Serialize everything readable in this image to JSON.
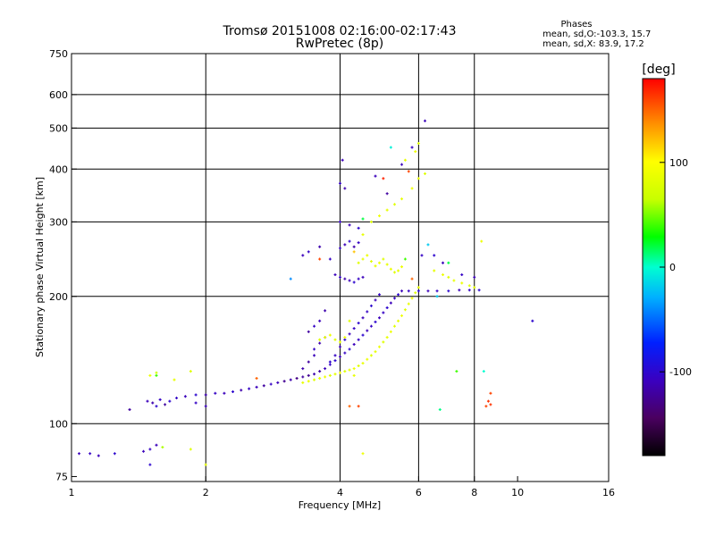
{
  "chart_data": {
    "type": "scatter",
    "title": "Tromsø 20151008 02:16:00-02:17:43",
    "subtitle": "RwPretec (8p)",
    "xlabel": "Frequency [MHz]",
    "ylabel": "Stationary phase Virtual Height [km]",
    "x_scale": "log2",
    "y_scale": "log",
    "xlim": [
      1,
      16
    ],
    "ylim": [
      73,
      750
    ],
    "x_ticks": [
      1,
      2,
      4,
      6,
      8,
      10,
      16
    ],
    "x_tick_labels": [
      "1",
      "2",
      "4",
      "6",
      "8",
      "10",
      "16"
    ],
    "x_gridlines": [
      2,
      4,
      6,
      8
    ],
    "y_ticks": [
      75,
      100,
      200,
      300,
      400,
      500,
      600,
      750
    ],
    "y_tick_labels": [
      "75",
      "100",
      "200",
      "300",
      "400",
      "500",
      "600",
      "750"
    ],
    "y_gridlines": [
      100,
      200,
      300,
      400,
      500,
      600
    ],
    "grid": true,
    "legend": {
      "title": "Phases",
      "o_mode": "mean, sd,O:-103.3, 15.7",
      "x_mode": "mean, sd,X:  83.9, 17.2"
    },
    "colorbar": {
      "unit": "[deg]",
      "range": [
        -180,
        180
      ],
      "tick_values": [
        100,
        0,
        -100
      ],
      "tick_labels": [
        "100",
        "0",
        "-100"
      ],
      "colormap": "rainbow"
    },
    "series": [
      {
        "trace": "O-mode (blue/purple, phase about -100 deg)",
        "points": [
          [
            1.48,
            113,
            -110
          ],
          [
            1.52,
            112,
            -115
          ],
          [
            1.55,
            110,
            -100
          ],
          [
            1.58,
            114,
            -105
          ],
          [
            1.62,
            111,
            -120
          ],
          [
            1.66,
            113,
            -100
          ],
          [
            1.72,
            115,
            -105
          ],
          [
            1.8,
            116,
            -110
          ],
          [
            1.9,
            117,
            -100
          ],
          [
            2.0,
            117,
            -115
          ],
          [
            2.1,
            118,
            -105
          ],
          [
            2.2,
            118,
            -110
          ],
          [
            2.3,
            119,
            -100
          ],
          [
            2.4,
            120,
            -115
          ],
          [
            2.5,
            121,
            -105
          ],
          [
            2.6,
            122,
            -110
          ],
          [
            2.7,
            123,
            -120
          ],
          [
            2.8,
            124,
            -105
          ],
          [
            2.9,
            125,
            -110
          ],
          [
            3.0,
            126,
            -125
          ],
          [
            3.1,
            127,
            -115
          ],
          [
            3.2,
            128,
            -130
          ],
          [
            3.3,
            129,
            -120
          ],
          [
            3.4,
            130,
            -125
          ],
          [
            3.5,
            131,
            -115
          ],
          [
            3.6,
            133,
            -120
          ],
          [
            3.7,
            135,
            -110
          ],
          [
            3.8,
            138,
            -105
          ],
          [
            3.9,
            141,
            -100
          ],
          [
            4.0,
            144,
            -110
          ],
          [
            4.1,
            147,
            -105
          ],
          [
            4.2,
            150,
            -100
          ],
          [
            4.3,
            154,
            -110
          ],
          [
            4.4,
            158,
            -105
          ],
          [
            4.5,
            162,
            -100
          ],
          [
            4.6,
            166,
            -110
          ],
          [
            4.7,
            170,
            -105
          ],
          [
            4.8,
            174,
            -100
          ],
          [
            4.9,
            178,
            -110
          ],
          [
            5.0,
            183,
            -105
          ],
          [
            5.1,
            188,
            -100
          ],
          [
            5.2,
            193,
            -110
          ],
          [
            5.3,
            198,
            -105
          ],
          [
            5.4,
            202,
            -100
          ],
          [
            5.5,
            206,
            -110
          ],
          [
            5.7,
            206,
            -105
          ],
          [
            6.0,
            206,
            -100
          ],
          [
            6.3,
            206,
            -110
          ],
          [
            6.6,
            206,
            -105
          ],
          [
            7.0,
            206,
            -100
          ],
          [
            7.4,
            207,
            -110
          ],
          [
            7.8,
            207,
            -105
          ],
          [
            8.2,
            207,
            -100
          ],
          [
            3.3,
            135,
            -115
          ],
          [
            3.4,
            140,
            -120
          ],
          [
            3.5,
            145,
            -110
          ],
          [
            3.5,
            150,
            -105
          ],
          [
            3.6,
            155,
            -115
          ],
          [
            3.7,
            160,
            -110
          ],
          [
            3.4,
            165,
            -120
          ],
          [
            3.5,
            170,
            -105
          ],
          [
            3.6,
            175,
            -110
          ],
          [
            3.7,
            185,
            -115
          ],
          [
            3.8,
            140,
            -100
          ],
          [
            3.9,
            145,
            -105
          ],
          [
            4.0,
            152,
            -110
          ],
          [
            4.1,
            158,
            -100
          ],
          [
            4.2,
            163,
            -110
          ],
          [
            4.3,
            168,
            -105
          ],
          [
            4.4,
            173,
            -100
          ],
          [
            4.5,
            178,
            -110
          ],
          [
            4.6,
            184,
            -105
          ],
          [
            4.7,
            190,
            -100
          ],
          [
            4.8,
            196,
            -110
          ],
          [
            4.9,
            202,
            -105
          ],
          [
            3.9,
            225,
            -110
          ],
          [
            4.0,
            222,
            -105
          ],
          [
            4.1,
            220,
            -115
          ],
          [
            4.2,
            218,
            -110
          ],
          [
            4.3,
            216,
            -100
          ],
          [
            4.4,
            220,
            -105
          ],
          [
            4.5,
            222,
            -110
          ],
          [
            4.0,
            260,
            -105
          ],
          [
            4.1,
            265,
            -110
          ],
          [
            4.2,
            270,
            -100
          ],
          [
            4.3,
            262,
            -115
          ],
          [
            4.4,
            268,
            -105
          ],
          [
            3.3,
            250,
            -110
          ],
          [
            3.4,
            255,
            -105
          ],
          [
            3.6,
            262,
            -115
          ],
          [
            3.8,
            245,
            -105
          ],
          [
            4.0,
            300,
            -105
          ],
          [
            4.2,
            295,
            -110
          ],
          [
            4.4,
            290,
            -100
          ],
          [
            4.0,
            370,
            -105
          ],
          [
            4.05,
            420,
            -110
          ],
          [
            4.1,
            360,
            -115
          ],
          [
            5.5,
            410,
            -110
          ],
          [
            5.8,
            450,
            -105
          ],
          [
            6.2,
            520,
            -110
          ],
          [
            6.1,
            250,
            -105
          ],
          [
            6.5,
            250,
            -100
          ],
          [
            6.8,
            240,
            -110
          ],
          [
            7.5,
            225,
            -105
          ],
          [
            8.0,
            222,
            -110
          ],
          [
            10.8,
            175,
            -100
          ],
          [
            5.1,
            350,
            -120
          ],
          [
            4.8,
            385,
            -110
          ],
          [
            1.04,
            85,
            -110
          ],
          [
            1.1,
            85,
            -105
          ],
          [
            1.15,
            84,
            -110
          ],
          [
            1.25,
            85,
            -100
          ],
          [
            1.45,
            86,
            -110
          ],
          [
            1.5,
            87,
            -105
          ],
          [
            1.55,
            89,
            -110
          ],
          [
            1.5,
            80,
            -100
          ],
          [
            1.9,
            112,
            -105
          ],
          [
            2.0,
            110,
            -110
          ],
          [
            1.35,
            108,
            -120
          ]
        ]
      },
      {
        "trace": "X-mode (yellow, phase about +84 deg)",
        "points": [
          [
            3.3,
            125,
            85
          ],
          [
            3.4,
            126,
            90
          ],
          [
            3.5,
            127,
            80
          ],
          [
            3.6,
            128,
            85
          ],
          [
            3.7,
            129,
            90
          ],
          [
            3.8,
            130,
            80
          ],
          [
            3.9,
            131,
            85
          ],
          [
            4.0,
            132,
            90
          ],
          [
            4.1,
            133,
            80
          ],
          [
            4.2,
            134,
            85
          ],
          [
            4.3,
            135,
            90
          ],
          [
            4.4,
            137,
            80
          ],
          [
            4.5,
            139,
            85
          ],
          [
            4.6,
            142,
            90
          ],
          [
            4.7,
            145,
            80
          ],
          [
            4.8,
            148,
            85
          ],
          [
            4.9,
            152,
            90
          ],
          [
            5.0,
            156,
            80
          ],
          [
            5.1,
            160,
            85
          ],
          [
            5.2,
            165,
            90
          ],
          [
            5.3,
            170,
            80
          ],
          [
            5.4,
            175,
            85
          ],
          [
            5.5,
            180,
            90
          ],
          [
            5.6,
            186,
            80
          ],
          [
            5.7,
            192,
            85
          ],
          [
            5.8,
            198,
            90
          ],
          [
            5.9,
            204,
            80
          ],
          [
            6.0,
            210,
            85
          ],
          [
            3.6,
            158,
            80
          ],
          [
            3.7,
            160,
            85
          ],
          [
            3.8,
            162,
            90
          ],
          [
            3.9,
            158,
            80
          ],
          [
            4.0,
            156,
            85
          ],
          [
            4.1,
            160,
            90
          ],
          [
            4.4,
            240,
            80
          ],
          [
            4.5,
            245,
            85
          ],
          [
            4.6,
            250,
            90
          ],
          [
            4.7,
            242,
            80
          ],
          [
            4.8,
            236,
            85
          ],
          [
            4.9,
            240,
            90
          ],
          [
            5.0,
            245,
            80
          ],
          [
            5.1,
            238,
            85
          ],
          [
            5.2,
            232,
            90
          ],
          [
            5.3,
            228,
            80
          ],
          [
            5.4,
            230,
            85
          ],
          [
            5.5,
            235,
            90
          ],
          [
            4.5,
            280,
            85
          ],
          [
            4.7,
            300,
            80
          ],
          [
            4.9,
            310,
            90
          ],
          [
            5.1,
            320,
            85
          ],
          [
            5.3,
            330,
            80
          ],
          [
            5.5,
            340,
            85
          ],
          [
            5.8,
            360,
            90
          ],
          [
            6.0,
            380,
            85
          ],
          [
            6.2,
            390,
            80
          ],
          [
            5.6,
            420,
            85
          ],
          [
            5.9,
            440,
            90
          ],
          [
            6.0,
            460,
            80
          ],
          [
            6.5,
            230,
            85
          ],
          [
            6.8,
            225,
            90
          ],
          [
            7.0,
            222,
            80
          ],
          [
            7.2,
            218,
            85
          ],
          [
            7.5,
            215,
            90
          ],
          [
            7.8,
            212,
            80
          ],
          [
            8.0,
            210,
            85
          ],
          [
            8.3,
            270,
            90
          ],
          [
            4.3,
            130,
            85
          ],
          [
            4.2,
            175,
            80
          ],
          [
            1.5,
            130,
            90
          ],
          [
            1.7,
            127,
            85
          ],
          [
            1.85,
            87,
            80
          ],
          [
            2.0,
            80,
            85
          ],
          [
            4.5,
            85,
            90
          ],
          [
            1.85,
            133,
            80
          ]
        ]
      },
      {
        "trace": "other phases",
        "points": [
          [
            8.5,
            110,
            160
          ],
          [
            8.7,
            111,
            165
          ],
          [
            8.6,
            113,
            165
          ],
          [
            8.7,
            118,
            160
          ],
          [
            6.7,
            108,
            10
          ],
          [
            7.3,
            133,
            40
          ],
          [
            4.5,
            305,
            20
          ],
          [
            5.8,
            220,
            150
          ],
          [
            6.3,
            265,
            -20
          ],
          [
            4.3,
            255,
            120
          ],
          [
            3.6,
            245,
            160
          ],
          [
            3.1,
            220,
            -40
          ],
          [
            5.0,
            380,
            170
          ],
          [
            5.7,
            395,
            160
          ],
          [
            2.6,
            128,
            150
          ],
          [
            1.55,
            130,
            40
          ],
          [
            1.55,
            132,
            70
          ],
          [
            1.6,
            88,
            60
          ],
          [
            4.2,
            110,
            150
          ],
          [
            4.4,
            110,
            160
          ],
          [
            5.6,
            245,
            40
          ],
          [
            7.0,
            240,
            20
          ],
          [
            6.6,
            200,
            -20
          ],
          [
            8.4,
            133,
            0
          ],
          [
            5.2,
            450,
            -5
          ]
        ]
      }
    ]
  }
}
